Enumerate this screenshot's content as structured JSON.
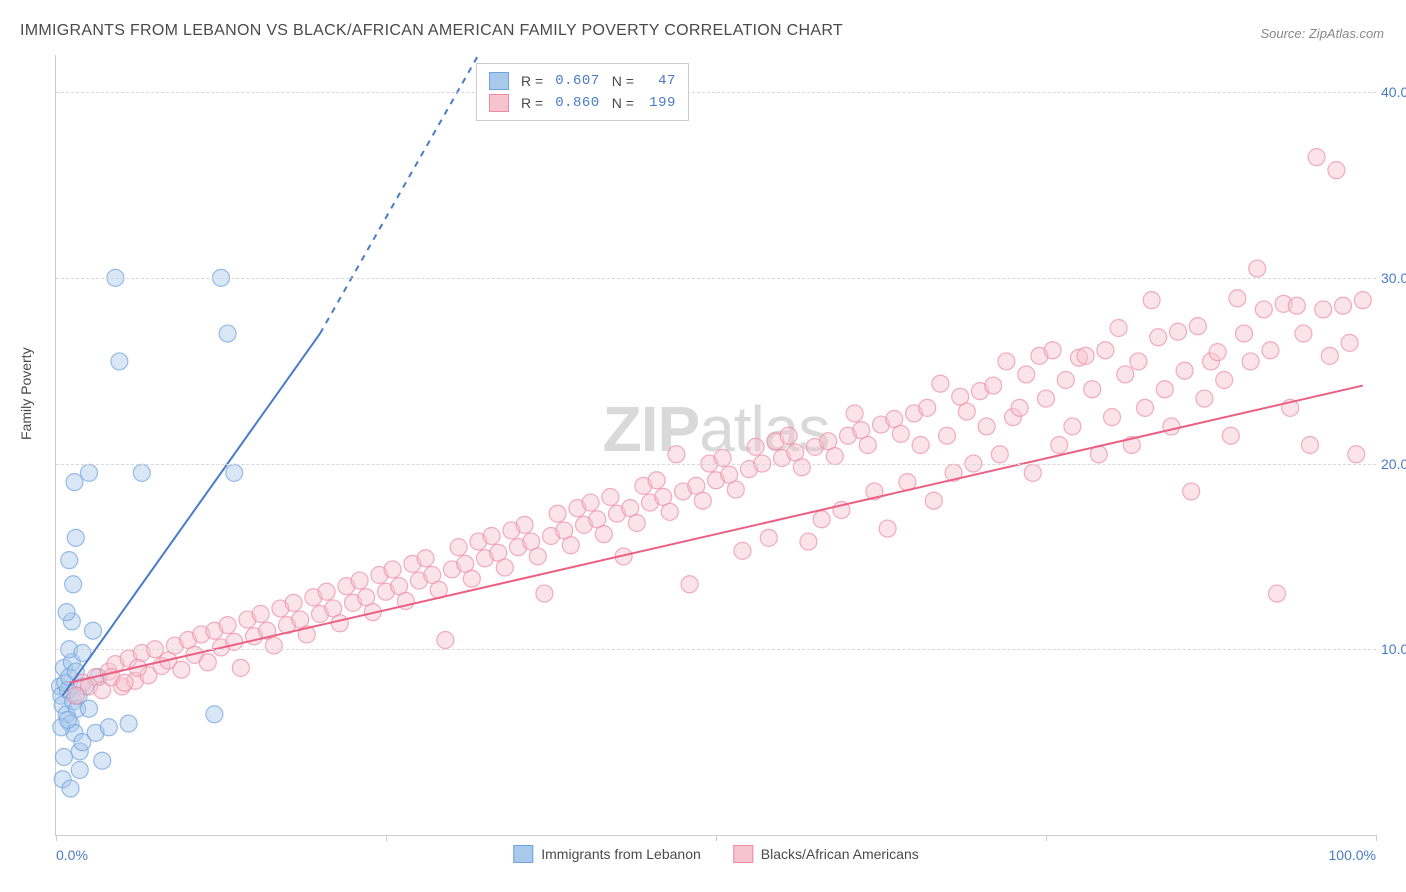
{
  "title": "IMMIGRANTS FROM LEBANON VS BLACK/AFRICAN AMERICAN FAMILY POVERTY CORRELATION CHART",
  "source": "Source: ZipAtlas.com",
  "ylabel": "Family Poverty",
  "watermark_zip": "ZIP",
  "watermark_atlas": "atlas",
  "chart": {
    "type": "scatter",
    "xlim": [
      0,
      100
    ],
    "ylim": [
      0,
      42
    ],
    "x_ticks": [
      0,
      25,
      50,
      75,
      100
    ],
    "x_tick_labels": {
      "0": "0.0%",
      "100": "100.0%"
    },
    "y_ticks": [
      10,
      20,
      30,
      40
    ],
    "y_tick_labels": [
      "10.0%",
      "20.0%",
      "30.0%",
      "40.0%"
    ],
    "grid_color": "#d8d8d8",
    "background_color": "#ffffff",
    "axis_color": "#cccccc",
    "tick_label_color": "#4a7bc8",
    "marker_radius": 8.5,
    "marker_opacity": 0.45,
    "series": [
      {
        "name": "Immigrants from Lebanon",
        "color_fill": "#a8c8ec",
        "color_stroke": "#6fa3de",
        "R": "0.607",
        "N": "47",
        "trend": {
          "x0": 0.5,
          "y0": 7.5,
          "x1": 20,
          "y1": 27,
          "dash_to_x": 32,
          "dash_to_y": 42,
          "color": "#4a7bc8",
          "width": 2
        },
        "points": [
          [
            0.3,
            8.0
          ],
          [
            0.4,
            7.5
          ],
          [
            0.5,
            7.0
          ],
          [
            0.6,
            9.0
          ],
          [
            0.7,
            8.2
          ],
          [
            0.8,
            6.5
          ],
          [
            0.9,
            7.8
          ],
          [
            1.0,
            8.5
          ],
          [
            1.1,
            6.0
          ],
          [
            1.2,
            9.3
          ],
          [
            1.3,
            7.2
          ],
          [
            1.4,
            5.5
          ],
          [
            1.5,
            8.8
          ],
          [
            1.6,
            6.8
          ],
          [
            1.8,
            4.5
          ],
          [
            2.0,
            5.0
          ],
          [
            1.0,
            10.0
          ],
          [
            1.2,
            11.5
          ],
          [
            2.2,
            8.0
          ],
          [
            2.5,
            6.8
          ],
          [
            3.0,
            5.5
          ],
          [
            3.5,
            4.0
          ],
          [
            4.0,
            5.8
          ],
          [
            5.5,
            6.0
          ],
          [
            1.3,
            13.5
          ],
          [
            1.0,
            14.8
          ],
          [
            2.8,
            11.0
          ],
          [
            0.8,
            12.0
          ],
          [
            1.5,
            16.0
          ],
          [
            0.5,
            3.0
          ],
          [
            1.1,
            2.5
          ],
          [
            1.8,
            3.5
          ],
          [
            0.6,
            4.2
          ],
          [
            1.4,
            19.0
          ],
          [
            2.5,
            19.5
          ],
          [
            4.5,
            30.0
          ],
          [
            4.8,
            25.5
          ],
          [
            6.5,
            19.5
          ],
          [
            12.0,
            6.5
          ],
          [
            12.5,
            30.0
          ],
          [
            13.0,
            27.0
          ],
          [
            13.5,
            19.5
          ],
          [
            0.4,
            5.8
          ],
          [
            0.9,
            6.2
          ],
          [
            1.7,
            7.5
          ],
          [
            2.0,
            9.8
          ],
          [
            3.2,
            8.5
          ]
        ]
      },
      {
        "name": "Blacks/African Americans",
        "color_fill": "#f7c3cf",
        "color_stroke": "#ec8ba5",
        "R": "0.860",
        "N": "199",
        "trend": {
          "x0": 1,
          "y0": 8.2,
          "x1": 99,
          "y1": 24.2,
          "color": "#ec5f85",
          "width": 2
        },
        "points": [
          [
            2,
            8.2
          ],
          [
            3,
            8.5
          ],
          [
            4,
            8.8
          ],
          [
            4.5,
            9.2
          ],
          [
            5,
            8.0
          ],
          [
            5.5,
            9.5
          ],
          [
            6,
            8.3
          ],
          [
            6.5,
            9.8
          ],
          [
            7,
            8.6
          ],
          [
            7.5,
            10.0
          ],
          [
            8,
            9.1
          ],
          [
            8.5,
            9.4
          ],
          [
            9,
            10.2
          ],
          [
            9.5,
            8.9
          ],
          [
            10,
            10.5
          ],
          [
            10.5,
            9.7
          ],
          [
            11,
            10.8
          ],
          [
            11.5,
            9.3
          ],
          [
            12,
            11.0
          ],
          [
            12.5,
            10.1
          ],
          [
            13,
            11.3
          ],
          [
            13.5,
            10.4
          ],
          [
            14,
            9.0
          ],
          [
            14.5,
            11.6
          ],
          [
            15,
            10.7
          ],
          [
            15.5,
            11.9
          ],
          [
            16,
            11.0
          ],
          [
            16.5,
            10.2
          ],
          [
            17,
            12.2
          ],
          [
            17.5,
            11.3
          ],
          [
            18,
            12.5
          ],
          [
            18.5,
            11.6
          ],
          [
            19,
            10.8
          ],
          [
            19.5,
            12.8
          ],
          [
            20,
            11.9
          ],
          [
            20.5,
            13.1
          ],
          [
            21,
            12.2
          ],
          [
            21.5,
            11.4
          ],
          [
            22,
            13.4
          ],
          [
            22.5,
            12.5
          ],
          [
            23,
            13.7
          ],
          [
            23.5,
            12.8
          ],
          [
            24,
            12.0
          ],
          [
            24.5,
            14.0
          ],
          [
            25,
            13.1
          ],
          [
            25.5,
            14.3
          ],
          [
            26,
            13.4
          ],
          [
            26.5,
            12.6
          ],
          [
            27,
            14.6
          ],
          [
            27.5,
            13.7
          ],
          [
            28,
            14.9
          ],
          [
            28.5,
            14.0
          ],
          [
            29,
            13.2
          ],
          [
            29.5,
            10.5
          ],
          [
            30,
            14.3
          ],
          [
            30.5,
            15.5
          ],
          [
            31,
            14.6
          ],
          [
            31.5,
            13.8
          ],
          [
            32,
            15.8
          ],
          [
            32.5,
            14.9
          ],
          [
            33,
            16.1
          ],
          [
            33.5,
            15.2
          ],
          [
            34,
            14.4
          ],
          [
            34.5,
            16.4
          ],
          [
            35,
            15.5
          ],
          [
            35.5,
            16.7
          ],
          [
            36,
            15.8
          ],
          [
            36.5,
            15.0
          ],
          [
            37,
            13.0
          ],
          [
            37.5,
            16.1
          ],
          [
            38,
            17.3
          ],
          [
            38.5,
            16.4
          ],
          [
            39,
            15.6
          ],
          [
            39.5,
            17.6
          ],
          [
            40,
            16.7
          ],
          [
            40.5,
            17.9
          ],
          [
            41,
            17.0
          ],
          [
            41.5,
            16.2
          ],
          [
            42,
            18.2
          ],
          [
            42.5,
            17.3
          ],
          [
            43,
            15.0
          ],
          [
            43.5,
            17.6
          ],
          [
            44,
            16.8
          ],
          [
            44.5,
            18.8
          ],
          [
            45,
            17.9
          ],
          [
            45.5,
            19.1
          ],
          [
            46,
            18.2
          ],
          [
            46.5,
            17.4
          ],
          [
            47,
            20.5
          ],
          [
            47.5,
            18.5
          ],
          [
            48,
            13.5
          ],
          [
            48.5,
            18.8
          ],
          [
            49,
            18.0
          ],
          [
            49.5,
            20.0
          ],
          [
            50,
            19.1
          ],
          [
            50.5,
            20.3
          ],
          [
            51,
            19.4
          ],
          [
            51.5,
            18.6
          ],
          [
            52,
            15.3
          ],
          [
            52.5,
            19.7
          ],
          [
            53,
            20.9
          ],
          [
            53.5,
            20.0
          ],
          [
            54,
            16.0
          ],
          [
            54.5,
            21.2
          ],
          [
            55,
            20.3
          ],
          [
            55.5,
            21.5
          ],
          [
            56,
            20.6
          ],
          [
            56.5,
            19.8
          ],
          [
            57,
            15.8
          ],
          [
            57.5,
            20.9
          ],
          [
            58,
            17.0
          ],
          [
            58.5,
            21.2
          ],
          [
            59,
            20.4
          ],
          [
            59.5,
            17.5
          ],
          [
            60,
            21.5
          ],
          [
            60.5,
            22.7
          ],
          [
            61,
            21.8
          ],
          [
            61.5,
            21.0
          ],
          [
            62,
            18.5
          ],
          [
            62.5,
            22.1
          ],
          [
            63,
            16.5
          ],
          [
            63.5,
            22.4
          ],
          [
            64,
            21.6
          ],
          [
            64.5,
            19.0
          ],
          [
            65,
            22.7
          ],
          [
            65.5,
            21.0
          ],
          [
            66,
            23.0
          ],
          [
            66.5,
            18.0
          ],
          [
            67,
            24.3
          ],
          [
            67.5,
            21.5
          ],
          [
            68,
            19.5
          ],
          [
            68.5,
            23.6
          ],
          [
            69,
            22.8
          ],
          [
            69.5,
            20.0
          ],
          [
            70,
            23.9
          ],
          [
            70.5,
            22.0
          ],
          [
            71,
            24.2
          ],
          [
            71.5,
            20.5
          ],
          [
            72,
            25.5
          ],
          [
            72.5,
            22.5
          ],
          [
            73,
            23.0
          ],
          [
            73.5,
            24.8
          ],
          [
            74,
            19.5
          ],
          [
            74.5,
            25.8
          ],
          [
            75,
            23.5
          ],
          [
            75.5,
            26.1
          ],
          [
            76,
            21.0
          ],
          [
            76.5,
            24.5
          ],
          [
            77,
            22.0
          ],
          [
            77.5,
            25.7
          ],
          [
            78,
            25.8
          ],
          [
            78.5,
            24.0
          ],
          [
            79,
            20.5
          ],
          [
            79.5,
            26.1
          ],
          [
            80,
            22.5
          ],
          [
            80.5,
            27.3
          ],
          [
            81,
            24.8
          ],
          [
            81.5,
            21.0
          ],
          [
            82,
            25.5
          ],
          [
            82.5,
            23.0
          ],
          [
            83,
            28.8
          ],
          [
            83.5,
            26.8
          ],
          [
            84,
            24.0
          ],
          [
            84.5,
            22.0
          ],
          [
            85,
            27.1
          ],
          [
            85.5,
            25.0
          ],
          [
            86,
            18.5
          ],
          [
            86.5,
            27.4
          ],
          [
            87,
            23.5
          ],
          [
            87.5,
            25.5
          ],
          [
            88,
            26.0
          ],
          [
            88.5,
            24.5
          ],
          [
            89,
            21.5
          ],
          [
            89.5,
            28.9
          ],
          [
            90,
            27.0
          ],
          [
            90.5,
            25.5
          ],
          [
            91,
            30.5
          ],
          [
            91.5,
            28.3
          ],
          [
            92,
            26.1
          ],
          [
            92.5,
            13.0
          ],
          [
            93,
            28.6
          ],
          [
            93.5,
            23.0
          ],
          [
            94,
            28.5
          ],
          [
            94.5,
            27.0
          ],
          [
            95,
            21.0
          ],
          [
            95.5,
            36.5
          ],
          [
            96,
            28.3
          ],
          [
            96.5,
            25.8
          ],
          [
            97,
            35.8
          ],
          [
            97.5,
            28.5
          ],
          [
            98,
            26.5
          ],
          [
            98.5,
            20.5
          ],
          [
            99,
            28.8
          ],
          [
            2.5,
            8.0
          ],
          [
            3.5,
            7.8
          ],
          [
            4.2,
            8.5
          ],
          [
            5.2,
            8.2
          ],
          [
            6.2,
            9.0
          ],
          [
            1.5,
            7.5
          ]
        ]
      }
    ]
  },
  "legend_top": {
    "R_label": "R =",
    "N_label": "N ="
  },
  "legend_bottom_label_a": "Immigrants from Lebanon",
  "legend_bottom_label_b": "Blacks/African Americans"
}
